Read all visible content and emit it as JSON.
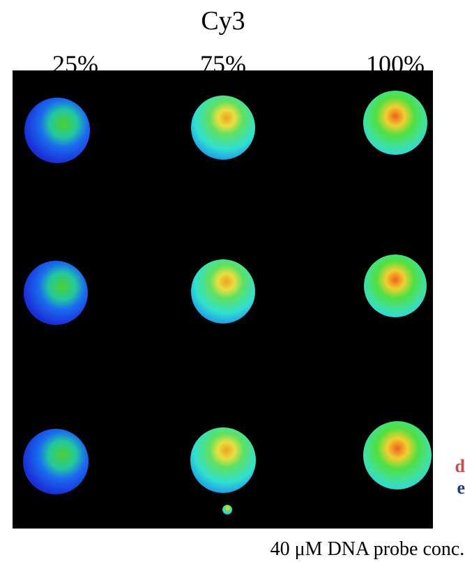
{
  "title": "Cy3",
  "columns": [
    "25%",
    "75%",
    "100%"
  ],
  "side_labels": [
    "d",
    "e"
  ],
  "caption": "40 μM DNA probe conc."
}
